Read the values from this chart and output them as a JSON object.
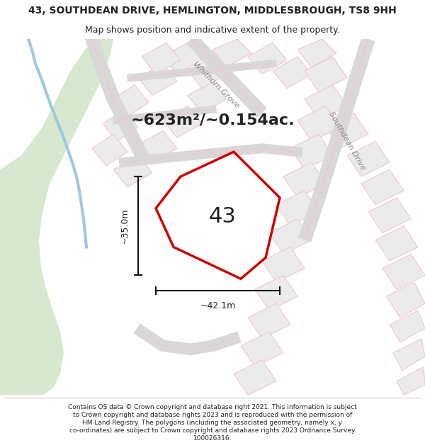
{
  "title": "43, SOUTHDEAN DRIVE, HEMLINGTON, MIDDLESBROUGH, TS8 9HH",
  "subtitle": "Map shows position and indicative extent of the property.",
  "area_text": "~623m²/~0.154ac.",
  "property_number": "43",
  "dim_width": "~42.1m",
  "dim_height": "~35.0m",
  "street1": "Whithorn Grove",
  "street2": "Southdean Drive",
  "footer_lines": [
    "Contains OS data © Crown copyright and database right 2021. This information is subject",
    "to Crown copyright and database rights 2023 and is reproduced with the permission of",
    "HM Land Registry. The polygons (including the associated geometry, namely x, y",
    "co-ordinates) are subject to Crown copyright and database rights 2023 Ordnance Survey",
    "100026316."
  ],
  "bg_color": "#ffffff",
  "map_bg": "#f5f5f5",
  "road_color": "#f0c8c8",
  "green_color": "#d8e8d0",
  "property_fill": "#ffffff",
  "property_edge": "#cc0000",
  "dim_line_color": "#111111",
  "text_color": "#222222",
  "fig_width": 6.0,
  "fig_height": 6.25,
  "title_fontsize": 10,
  "subtitle_fontsize": 9,
  "area_fontsize": 16,
  "number_fontsize": 22,
  "dim_fontsize": 9,
  "street_fontsize": 8,
  "footer_fontsize": 6.5
}
